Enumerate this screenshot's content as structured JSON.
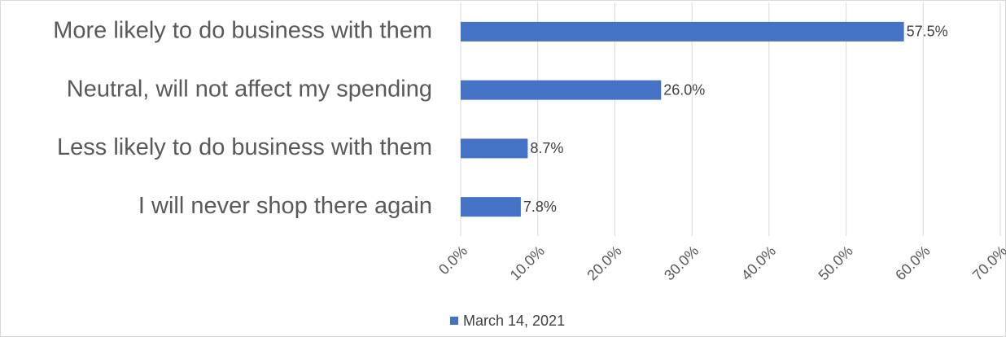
{
  "chart_data": {
    "type": "bar",
    "orientation": "horizontal",
    "categories": [
      "More likely to do business with them",
      "Neutral, will not affect my spending",
      "Less likely to do business with them",
      "I will never shop there again"
    ],
    "series": [
      {
        "name": "March 14, 2021",
        "color": "#4472c4",
        "values": [
          57.5,
          26.0,
          8.7,
          7.8
        ],
        "value_labels": [
          "57.5%",
          "26.0%",
          "8.7%",
          "7.8%"
        ]
      }
    ],
    "xlim": [
      0,
      70
    ],
    "xticks": [
      {
        "value": 0,
        "label": "0.0%"
      },
      {
        "value": 10,
        "label": "10.0%"
      },
      {
        "value": 20,
        "label": "20.0%"
      },
      {
        "value": 30,
        "label": "30.0%"
      },
      {
        "value": 40,
        "label": "40.0%"
      },
      {
        "value": 50,
        "label": "50.0%"
      },
      {
        "value": 60,
        "label": "60.0%"
      },
      {
        "value": 70,
        "label": "70.0%"
      }
    ],
    "grid": true,
    "legend": "bottom"
  }
}
